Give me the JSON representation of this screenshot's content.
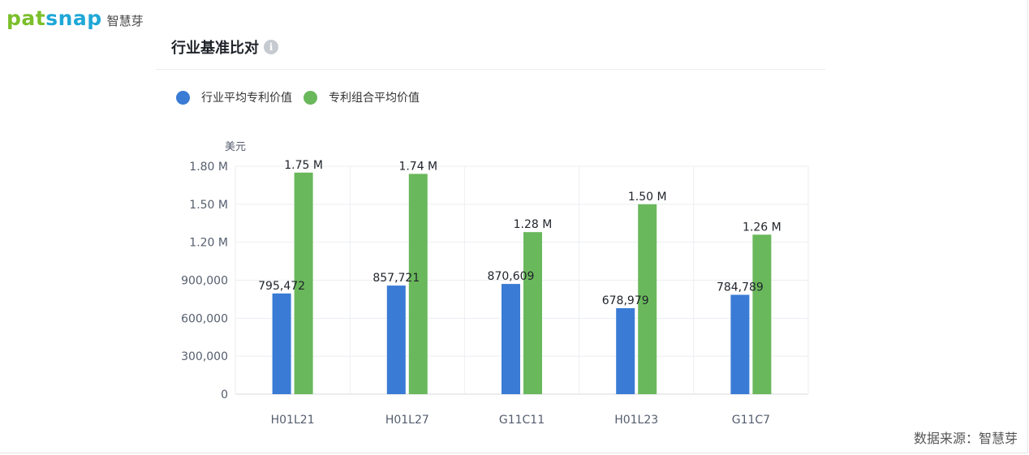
{
  "logo": {
    "brand": "patsnap",
    "brand_cn": "智慧芽"
  },
  "title": "行业基准比对",
  "info_icon": "info-icon",
  "source": "数据来源：智慧芽",
  "colors": {
    "industry": "#3a7bd5",
    "portfolio": "#6ab85c"
  },
  "chart_data": {
    "type": "bar",
    "title": "行业基准比对",
    "ylabel": "美元",
    "xlabel": "",
    "ylim": [
      0,
      1800000
    ],
    "y_ticks": [
      0,
      300000,
      600000,
      900000,
      1200000,
      1500000,
      1800000
    ],
    "y_tick_labels": [
      "0",
      "300,000",
      "600,000",
      "900,000",
      "1.20 M",
      "1.50 M",
      "1.80 M"
    ],
    "categories": [
      "H01L21",
      "H01L27",
      "G11C11",
      "H01L23",
      "G11C7"
    ],
    "series": [
      {
        "name": "行业平均专利价值",
        "color": "#3a7bd5",
        "values": [
          795472,
          857721,
          870609,
          678979,
          784789
        ],
        "labels": [
          "795,472",
          "857,721",
          "870,609",
          "678,979",
          "784,789"
        ]
      },
      {
        "name": "专利组合平均价值",
        "color": "#6ab85c",
        "values": [
          1750000,
          1740000,
          1280000,
          1500000,
          1260000
        ],
        "labels": [
          "1.75 M",
          "1.74 M",
          "1.28 M",
          "1.50 M",
          "1.26 M"
        ]
      }
    ],
    "grid": true,
    "legend_position": "top-left"
  }
}
